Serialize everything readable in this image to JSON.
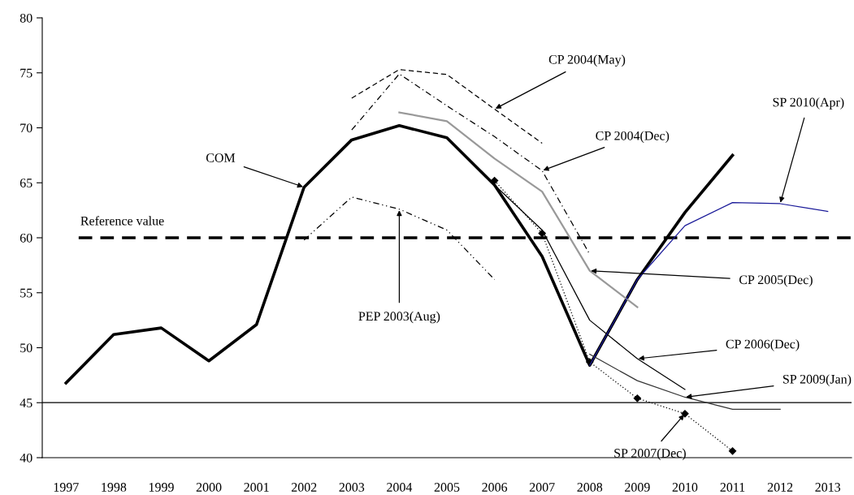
{
  "chart_data": {
    "type": "line",
    "categories": [
      "1997",
      "1998",
      "1999",
      "2000",
      "2001",
      "2002",
      "2003",
      "2004",
      "2005",
      "2006",
      "2007",
      "2008",
      "2009",
      "2010",
      "2011",
      "2012",
      "2013"
    ],
    "ylim": [
      40,
      80
    ],
    "yticks": [
      40,
      45,
      50,
      55,
      60,
      65,
      70,
      75,
      80
    ],
    "grid": false,
    "legend": false,
    "marker": "none",
    "series": [
      {
        "color": "#000000",
        "line_style": "solid",
        "values": [
          46.8,
          51.2,
          51.8,
          48.8,
          52.1,
          64.6,
          68.9,
          70.2,
          69.1,
          64.8,
          58.3,
          48.4,
          56.2,
          62.3,
          67.5,
          null,
          null
        ]
      },
      {
        "color": "#000000",
        "line_style": "dashed",
        "values": [
          null,
          null,
          null,
          null,
          null,
          null,
          72.7,
          75.3,
          74.85,
          71.7,
          68.6,
          null,
          null,
          null,
          null,
          null,
          null
        ]
      },
      {
        "color": "#000000",
        "line_style": "dashdot",
        "values": [
          null,
          null,
          null,
          null,
          null,
          null,
          69.8,
          74.9,
          72.0,
          69.2,
          66.1,
          58.5,
          null,
          null,
          null,
          null,
          null
        ]
      },
      {
        "color": "#999999",
        "line_style": "solid",
        "values": [
          null,
          null,
          null,
          null,
          null,
          null,
          null,
          71.4,
          70.6,
          67.2,
          64.2,
          57.0,
          53.7,
          null,
          null,
          null,
          null
        ]
      },
      {
        "color": "#000000",
        "line_style": "dashdotdot",
        "values": [
          null,
          null,
          null,
          null,
          null,
          59.8,
          63.7,
          62.6,
          60.7,
          56.2,
          null,
          null,
          null,
          null,
          null,
          null,
          null
        ]
      },
      {
        "color": "#000000",
        "line_style": "solid",
        "values": [
          null,
          null,
          null,
          null,
          null,
          null,
          null,
          null,
          null,
          64.8,
          60.7,
          52.5,
          49.0,
          46.2,
          null,
          null,
          null
        ]
      },
      {
        "color": "#333333",
        "line_style": "solid",
        "values": [
          null,
          null,
          null,
          null,
          null,
          null,
          null,
          null,
          null,
          null,
          null,
          49.4,
          47.0,
          45.5,
          44.4,
          44.4,
          null
        ]
      },
      {
        "color": "#000000",
        "line_style": "dotted",
        "marker": "diamond",
        "values": [
          null,
          null,
          null,
          null,
          null,
          null,
          null,
          null,
          null,
          65.2,
          60.4,
          48.7,
          45.4,
          44.0,
          40.6,
          null,
          null
        ]
      },
      {
        "color": "#1a1a99",
        "line_style": "solid",
        "values": [
          null,
          null,
          null,
          null,
          null,
          null,
          null,
          null,
          null,
          null,
          null,
          48.4,
          56.2,
          61.1,
          63.2,
          63.1,
          62.4
        ]
      }
    ],
    "ref_lines": [
      {
        "axis": "y",
        "value": 60,
        "label": "Reference value",
        "color": "#000000",
        "line_style": "dashed"
      },
      {
        "axis": "y",
        "value": 45,
        "color": "#000000",
        "line_style": "solid"
      }
    ],
    "annotations": [
      {
        "text": "COM",
        "x": "2002",
        "y": 64.6
      },
      {
        "text": "PEP 2003(Aug)",
        "x": "2004",
        "y": 62.6
      },
      {
        "text": "CP 2004(May)",
        "x": "2006",
        "y": 71.7
      },
      {
        "text": "CP 2004(Dec)",
        "x": "2007",
        "y": 66.1
      },
      {
        "text": "CP 2005(Dec)",
        "x": "2008",
        "y": 57.0
      },
      {
        "text": "CP 2006(Dec)",
        "x": "2009",
        "y": 49.0
      },
      {
        "text": "SP 2009(Jan)",
        "x": "2010",
        "y": 45.5
      },
      {
        "text": "SP 2007(Dec)",
        "x": "2010",
        "y": 44.0
      },
      {
        "text": "SP 2010(Apr)",
        "x": "2012",
        "y": 63.1
      }
    ]
  }
}
